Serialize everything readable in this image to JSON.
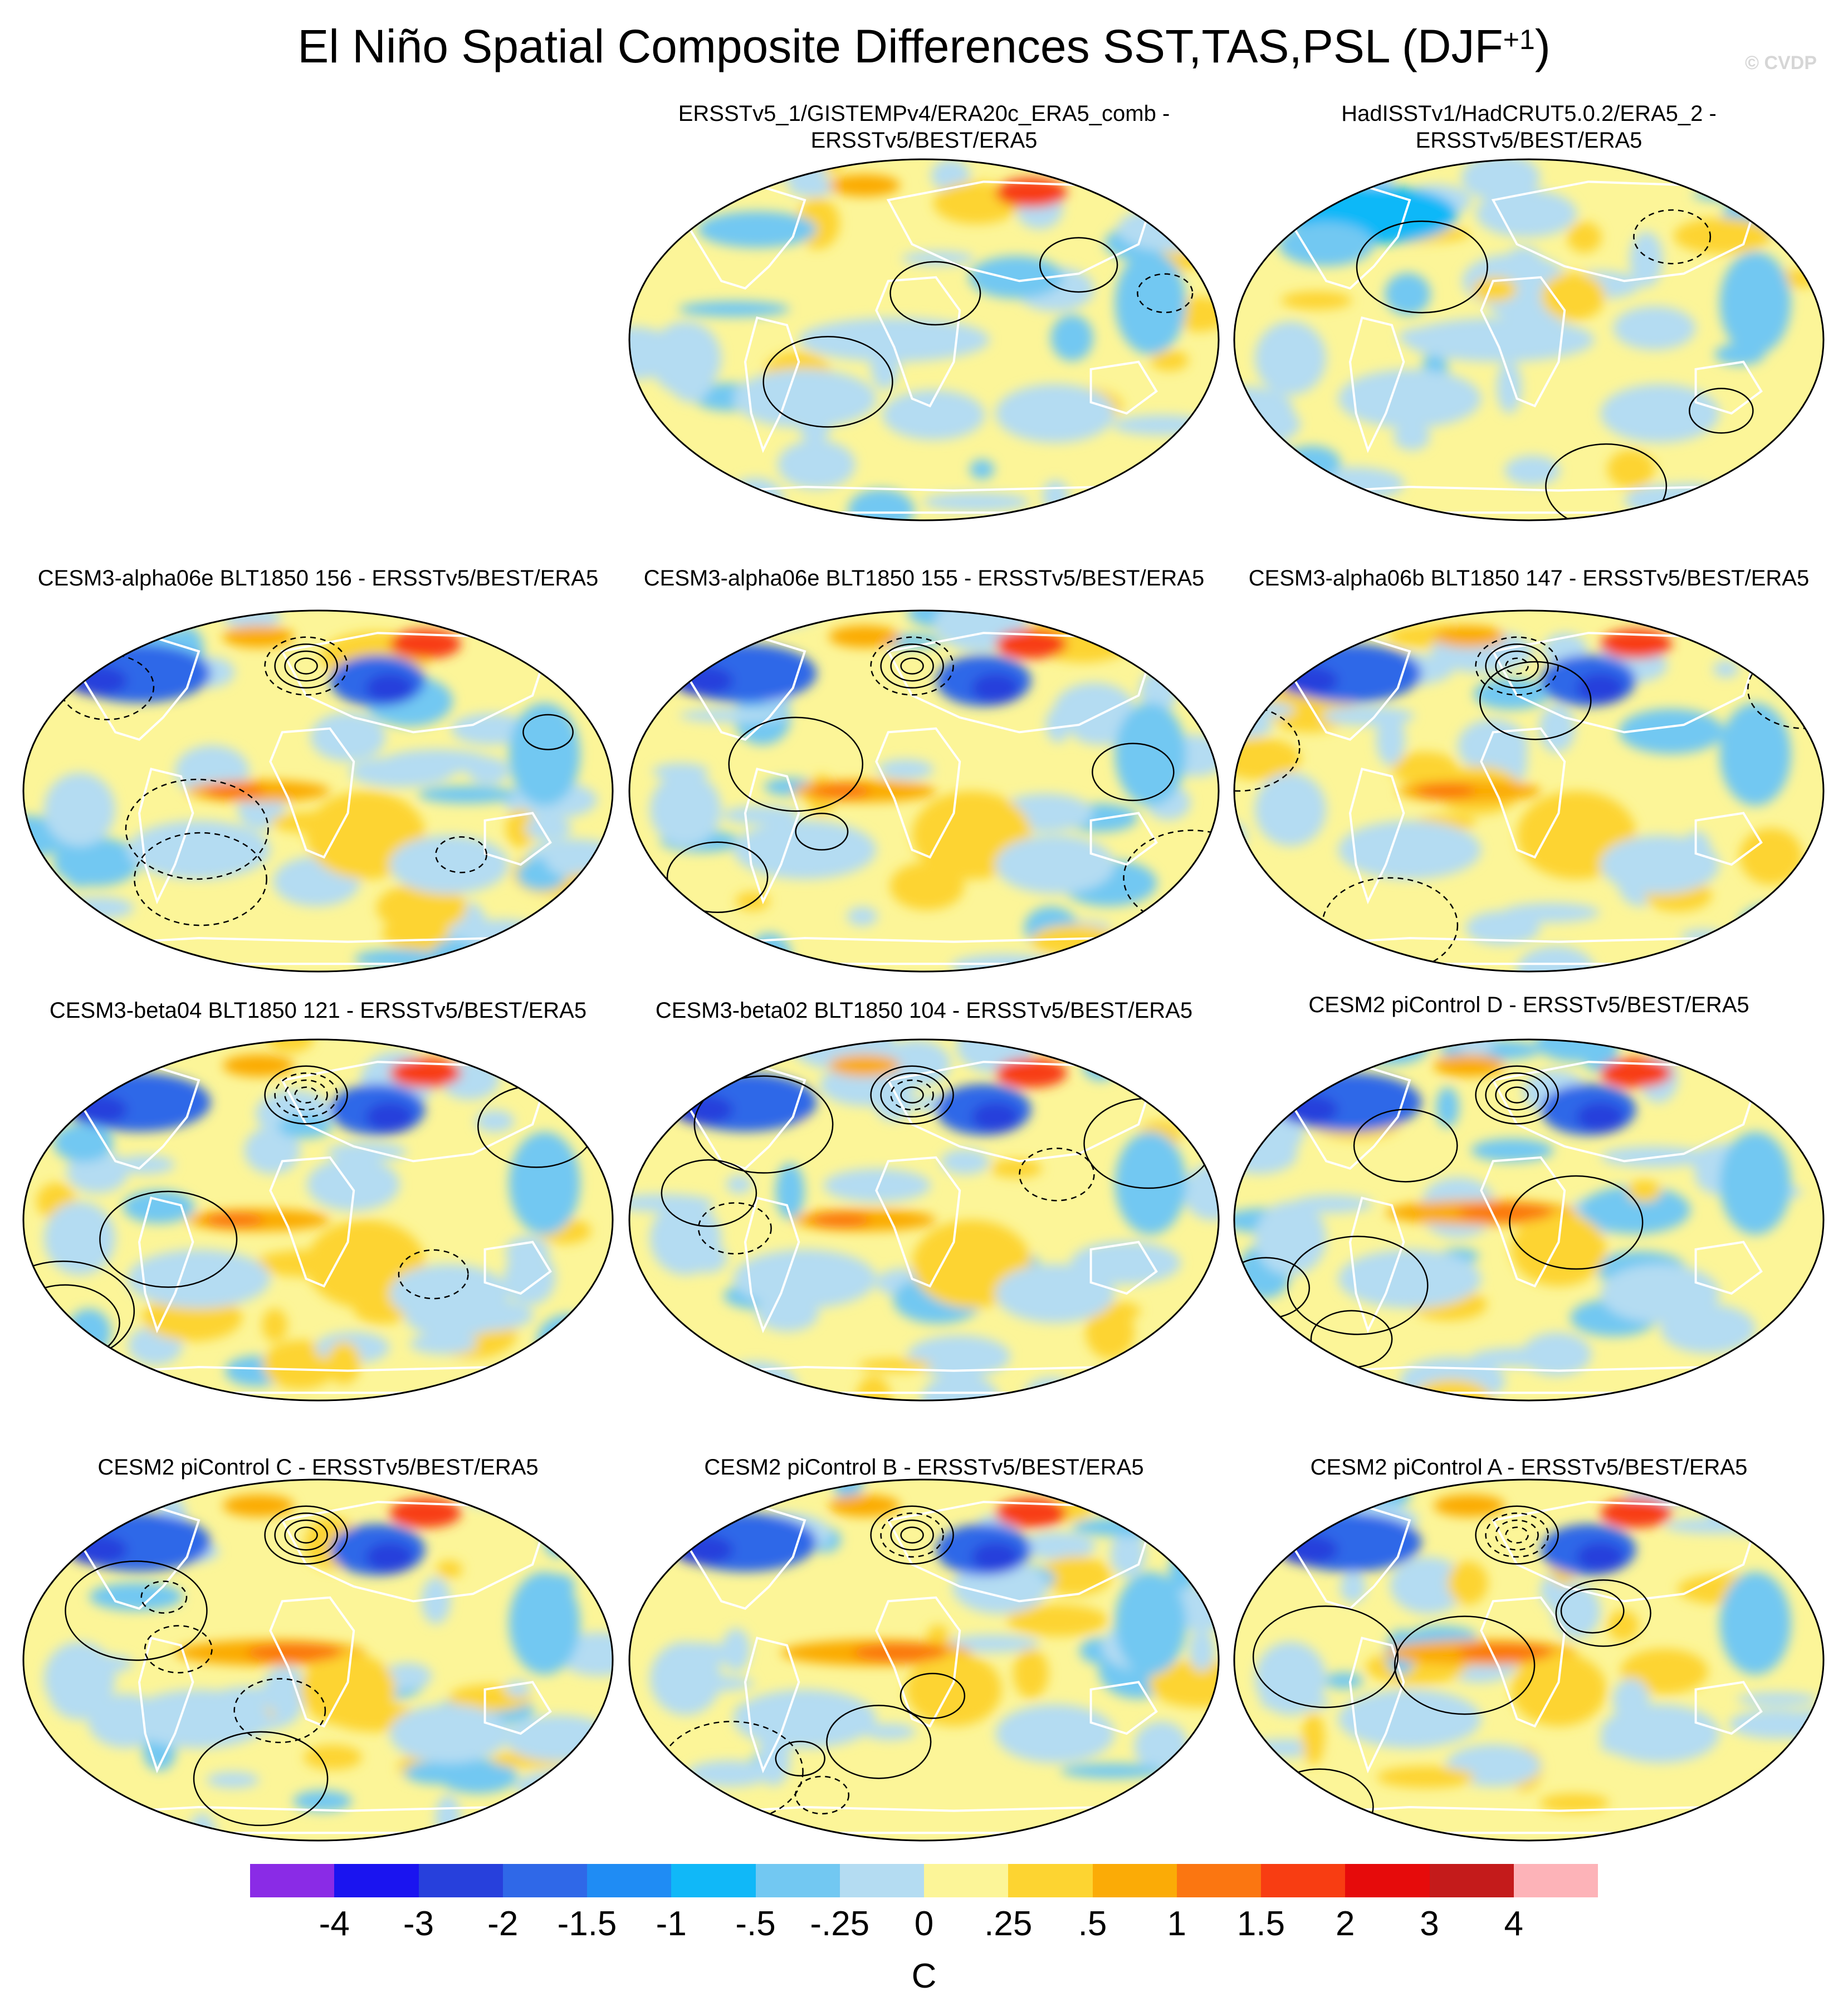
{
  "title_main": "El Niño Spatial Composite Differences SST,TAS,PSL (DJF",
  "title_sup": "+1",
  "title_end": ")",
  "credit": "© CVDP",
  "colors": {
    "land_outline": "#ffffff",
    "contour": "#000000",
    "map_border": "#000000"
  },
  "chart_data": {
    "type": "heatmap",
    "subtype": "global-map-panels",
    "colorbar": {
      "unit": "C",
      "labels": [
        "-4",
        "-3",
        "-2",
        "-1.5",
        "-1",
        "-.5",
        "-.25",
        "0",
        ".25",
        ".5",
        "1",
        "1.5",
        "2",
        "3",
        "4"
      ],
      "colors": [
        "#8a2be6",
        "#1a14f0",
        "#2740dc",
        "#2f68e8",
        "#1f8cf4",
        "#10b8f8",
        "#72c8f2",
        "#b4dcf2",
        "#fcf598",
        "#fdd431",
        "#fbab06",
        "#fb7611",
        "#f83d12",
        "#e60b0b",
        "#c41b1b",
        "#fdb3b8"
      ]
    },
    "panels": [
      {
        "title": "ERSSTv5_1/GISTEMPv4/ERA20c_ERA5_comb -\nERSSTv5/BEST/ERA5",
        "pattern": "obs1"
      },
      {
        "title": "HadISSTv1/HadCRUT5.0.2/ERA5_2 -\nERSSTv5/BEST/ERA5",
        "pattern": "obs2"
      },
      {
        "title": "CESM3-alpha06e BLT1850 156 - ERSSTv5/BEST/ERA5",
        "pattern": "model"
      },
      {
        "title": "CESM3-alpha06e BLT1850 155 - ERSSTv5/BEST/ERA5",
        "pattern": "model"
      },
      {
        "title": "CESM3-alpha06b BLT1850 147 - ERSSTv5/BEST/ERA5",
        "pattern": "model"
      },
      {
        "title": "CESM3-beta04 BLT1850 121 - ERSSTv5/BEST/ERA5",
        "pattern": "model"
      },
      {
        "title": "CESM3-beta02 BLT1850 104 - ERSSTv5/BEST/ERA5",
        "pattern": "model"
      },
      {
        "title": "CESM2 piControl D - ERSSTv5/BEST/ERA5",
        "pattern": "cesm2"
      },
      {
        "title": "CESM2 piControl C - ERSSTv5/BEST/ERA5",
        "pattern": "cesm2"
      },
      {
        "title": "CESM2 piControl B - ERSSTv5/BEST/ERA5",
        "pattern": "cesm2"
      },
      {
        "title": "CESM2 piControl A - ERSSTv5/BEST/ERA5",
        "pattern": "cesm2"
      }
    ]
  }
}
